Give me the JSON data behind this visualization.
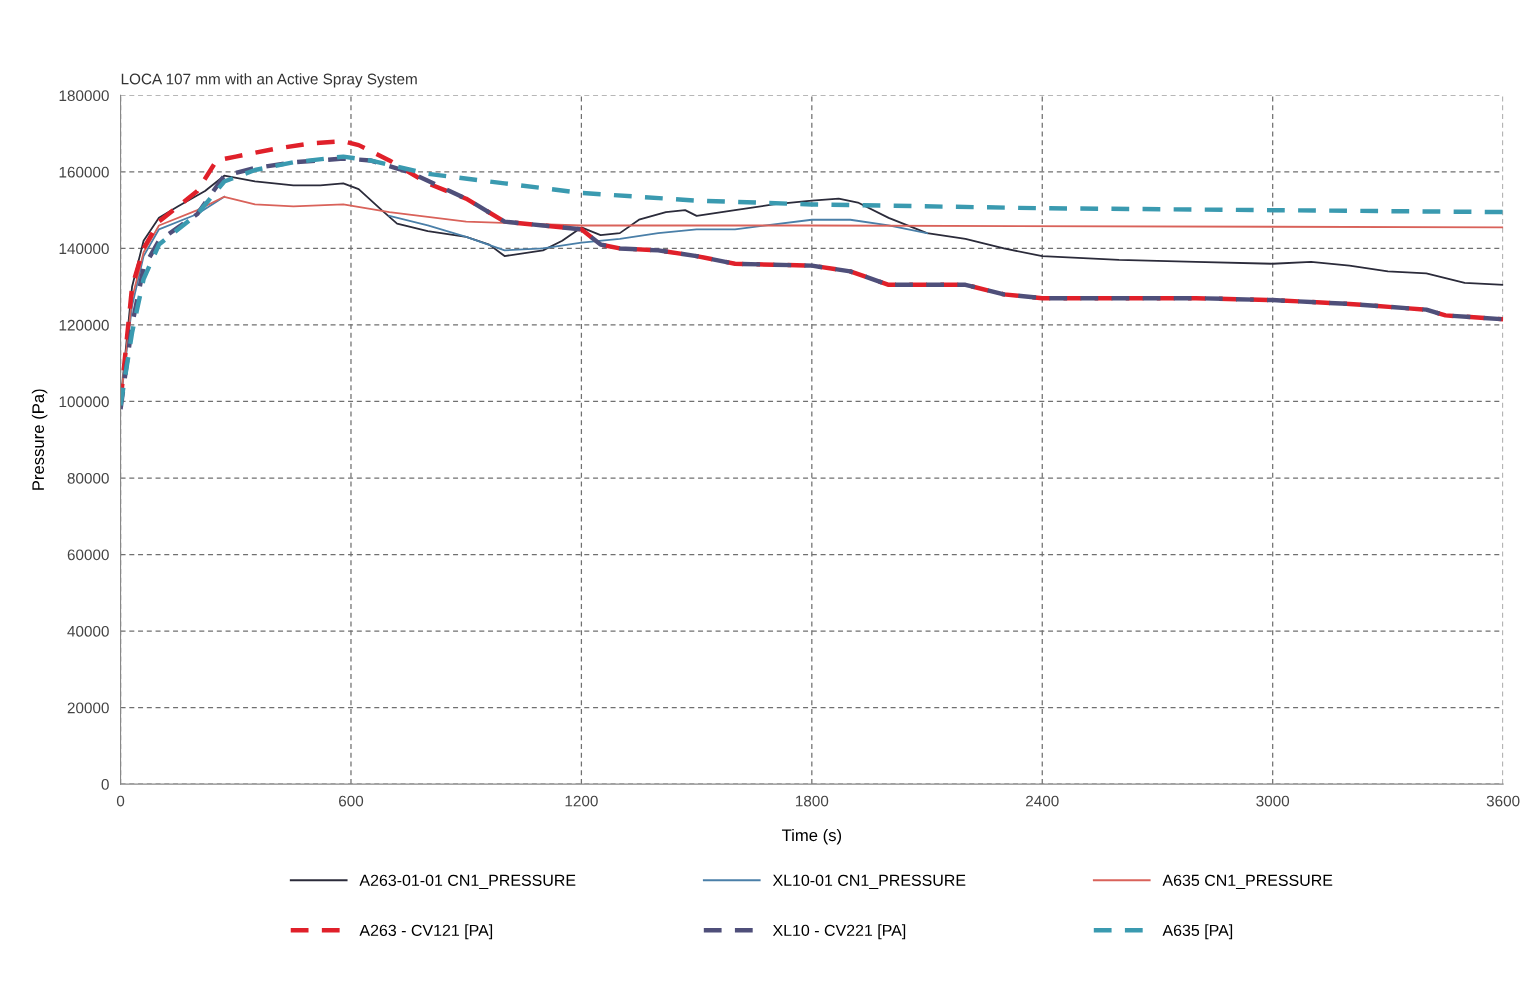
{
  "chart_data": {
    "type": "line",
    "title": "LOCA 107 mm with an Active Spray System",
    "xlabel": "Time (s)",
    "ylabel": "Pressure (Pa)",
    "xlim": [
      0,
      3600
    ],
    "xticks": [
      0,
      600,
      1200,
      1800,
      2400,
      3000,
      3600
    ],
    "ylim": [
      0,
      180000
    ],
    "yticks": [
      0,
      20000,
      40000,
      60000,
      80000,
      100000,
      120000,
      140000,
      160000,
      180000
    ],
    "grid": true,
    "legend": "bottom",
    "marker": "none",
    "series": [
      {
        "name": "A263-01-01 CN1_PRESSURE",
        "color": "#2b2b3a",
        "line_style": "solid",
        "x": [
          0,
          30,
          60,
          100,
          150,
          220,
          270,
          350,
          450,
          520,
          580,
          620,
          680,
          720,
          800,
          900,
          960,
          1000,
          1100,
          1150,
          1200,
          1250,
          1300,
          1350,
          1420,
          1470,
          1500,
          1600,
          1700,
          1800,
          1870,
          1920,
          2000,
          2100,
          2200,
          2300,
          2400,
          2600,
          2800,
          3000,
          3100,
          3200,
          3300,
          3400,
          3500,
          3600
        ],
        "values": [
          100000,
          130000,
          142000,
          148000,
          151000,
          155000,
          159000,
          157500,
          156500,
          156500,
          157000,
          155500,
          150000,
          146500,
          144500,
          143000,
          141000,
          138000,
          139500,
          142000,
          145500,
          143500,
          144000,
          147500,
          149500,
          150000,
          148500,
          150000,
          151500,
          152500,
          153000,
          152000,
          148000,
          144000,
          142500,
          140000,
          138000,
          137000,
          136500,
          136000,
          136500,
          135500,
          134000,
          133500,
          131000,
          130500
        ]
      },
      {
        "name": "XL10-01 CN1_PRESSURE",
        "color": "#4a7fa8",
        "line_style": "solid",
        "x": [
          0,
          30,
          60,
          100,
          200,
          270,
          350,
          450,
          580,
          700,
          800,
          900,
          1000,
          1100,
          1200,
          1300,
          1400,
          1500,
          1600,
          1800,
          1900,
          2000,
          2100
        ],
        "values": [
          100000,
          125000,
          138000,
          145000,
          149000,
          153500,
          null,
          null,
          null,
          148500,
          146000,
          143000,
          139500,
          140000,
          141500,
          142500,
          144000,
          145000,
          145000,
          147500,
          147500,
          146000,
          144000
        ]
      },
      {
        "name": "A635 CN1_PRESSURE",
        "color": "#d9625a",
        "line_style": "solid",
        "x": [
          0,
          30,
          60,
          100,
          200,
          270,
          350,
          450,
          580,
          700,
          900,
          1200,
          1800,
          3600
        ],
        "values": [
          100000,
          127000,
          139000,
          146000,
          150000,
          153500,
          151500,
          151000,
          151500,
          149500,
          147000,
          146000,
          146000,
          145500
        ]
      },
      {
        "name": "A263 - CV121 [PA]",
        "color": "#e0202a",
        "line_style": "dashed",
        "x": [
          0,
          30,
          60,
          100,
          150,
          200,
          250,
          300,
          400,
          500,
          580,
          620,
          700,
          800,
          900,
          1000,
          1100,
          1200,
          1250,
          1300,
          1400,
          1500,
          1600,
          1800,
          1900,
          2000,
          2200,
          2300,
          2400,
          2600,
          2800,
          3000,
          3200,
          3400,
          3450,
          3600
        ],
        "values": [
          100000,
          130000,
          140000,
          147000,
          151000,
          155000,
          163000,
          164000,
          166000,
          167500,
          168000,
          167000,
          163000,
          157000,
          153000,
          147000,
          146000,
          145000,
          141000,
          140000,
          139500,
          138000,
          136000,
          135500,
          134000,
          130500,
          130500,
          128000,
          127000,
          127000,
          127000,
          126500,
          125500,
          124000,
          122500,
          121500
        ]
      },
      {
        "name": "XL10 - CV221 [PA]",
        "color": "#4f4f7a",
        "line_style": "dashed",
        "x": [
          0,
          30,
          60,
          100,
          150,
          200,
          270,
          350,
          450,
          580,
          650,
          750,
          900,
          1000,
          1100,
          1200,
          1250,
          1300,
          1400,
          1500,
          1600,
          1800,
          1900,
          2000,
          2200,
          2300,
          2400,
          2600,
          2800,
          3000,
          3200,
          3400,
          3450,
          3600
        ],
        "values": [
          98000,
          120000,
          135000,
          142000,
          145500,
          149000,
          159000,
          161000,
          162500,
          163500,
          163000,
          160000,
          153000,
          147000,
          146000,
          145000,
          141000,
          140000,
          139500,
          138000,
          136000,
          135500,
          134000,
          130500,
          130500,
          128000,
          127000,
          127000,
          127000,
          126500,
          125500,
          124000,
          122500,
          121500
        ]
      },
      {
        "name": "A635 [PA]",
        "color": "#3a9ab0",
        "line_style": "dashed",
        "x": [
          0,
          30,
          60,
          100,
          150,
          200,
          270,
          350,
          450,
          580,
          650,
          800,
          1000,
          1200,
          1500,
          1800,
          2400,
          3000,
          3600
        ],
        "values": [
          99000,
          118000,
          132000,
          141000,
          145000,
          149000,
          157500,
          160500,
          162500,
          164000,
          163000,
          159500,
          157000,
          154500,
          152500,
          151500,
          150500,
          150000,
          149500
        ]
      }
    ]
  }
}
